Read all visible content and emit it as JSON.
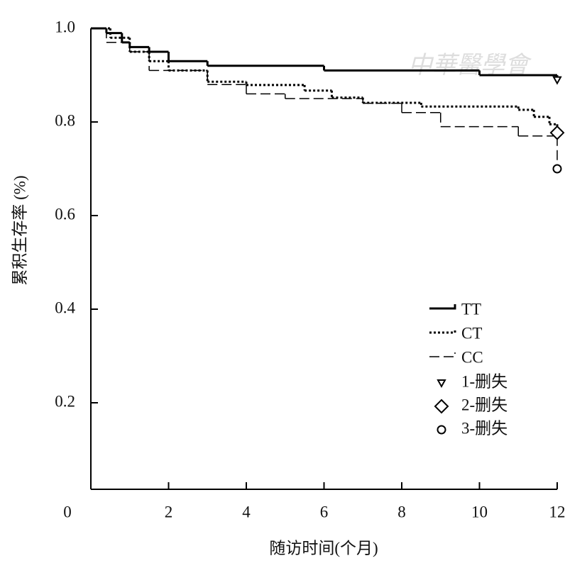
{
  "chart_data": {
    "type": "step",
    "watermark": "中華醫學會",
    "xlabel": "随访时间(个月)",
    "ylabel": "累积生存率 (%)",
    "xlim": [
      0,
      12
    ],
    "ylim": [
      0,
      1
    ],
    "xticks": [
      0,
      2,
      4,
      6,
      8,
      10,
      12
    ],
    "yticks": [
      0.2,
      0.4,
      0.6,
      0.8,
      {
        "value": 1,
        "label": "1.0"
      }
    ],
    "series": [
      {
        "name": "TT",
        "color": "#000000",
        "line_style": "solid",
        "x": [
          0,
          0.4,
          0.8,
          1.0,
          1.5,
          2.0,
          3.0,
          6.0,
          10.0,
          12
        ],
        "values": [
          1.0,
          0.99,
          0.97,
          0.96,
          0.95,
          0.93,
          0.92,
          0.91,
          0.9,
          0.89
        ]
      },
      {
        "name": "CT",
        "color": "#000000",
        "line_style": "dotted",
        "x": [
          0,
          0.5,
          1.0,
          1.5,
          2.0,
          3.0,
          4.0,
          5.5,
          6.2,
          7.0,
          8.5,
          11.0,
          11.4,
          11.8,
          12
        ],
        "values": [
          1.0,
          0.98,
          0.95,
          0.93,
          0.91,
          0.886,
          0.879,
          0.867,
          0.852,
          0.841,
          0.833,
          0.826,
          0.811,
          0.795,
          0.777
        ]
      },
      {
        "name": "CC",
        "color": "#000000",
        "line_style": "dashed",
        "x": [
          0,
          0.4,
          1.0,
          1.5,
          3.0,
          4.0,
          5.0,
          7.0,
          8.0,
          9.0,
          11.0,
          12
        ],
        "values": [
          1.0,
          0.97,
          0.95,
          0.91,
          0.88,
          0.86,
          0.85,
          0.84,
          0.82,
          0.79,
          0.77,
          0.7
        ]
      }
    ],
    "censored": [
      {
        "name": "1-删失",
        "shape": "triangle",
        "x": 12,
        "value": 0.89
      },
      {
        "name": "2-删失",
        "shape": "diamond",
        "x": 12,
        "value": 0.777
      },
      {
        "name": "3-删失",
        "shape": "circle",
        "x": 12,
        "value": 0.7
      }
    ]
  }
}
